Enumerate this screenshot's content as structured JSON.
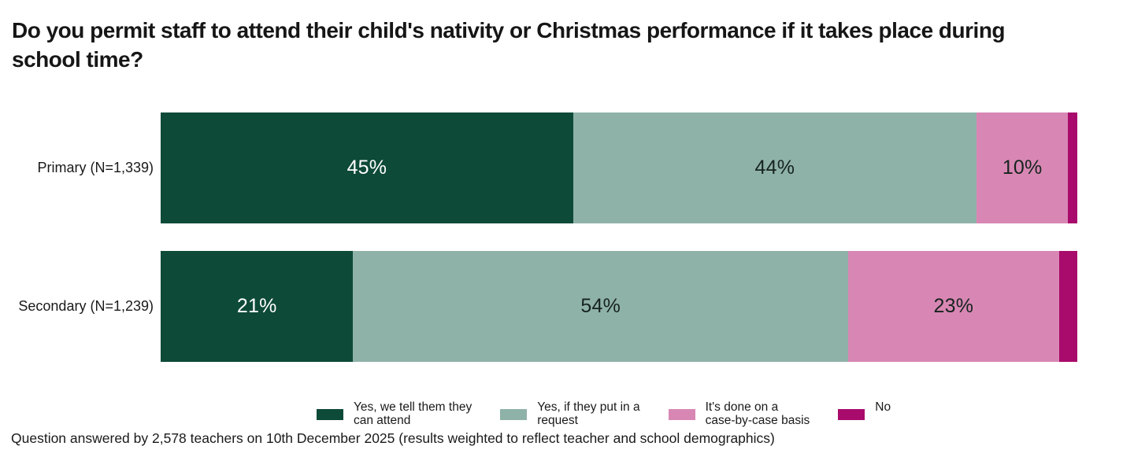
{
  "title": "Do you permit staff to attend their child's nativity or Christmas performance if it takes place during\nschool time?",
  "footnote": "Question answered by 2,578 teachers on 10th December 2025 (results weighted to reflect teacher and school demographics)",
  "chart_data": {
    "type": "bar",
    "variant": "horizontal-stacked",
    "x_range": [
      0,
      100
    ],
    "unit": "%",
    "grid": false,
    "legend_position": "bottom",
    "categories": [
      "Primary (N=1,339)",
      "Secondary (N=1,239)"
    ],
    "series": [
      {
        "name": "Yes, we tell them they can attend",
        "color": "#0D4A38",
        "label_color": "#FFFFFF",
        "values": [
          45,
          21
        ],
        "data_labels": [
          "45%",
          "21%"
        ]
      },
      {
        "name": "Yes, if they put in a request",
        "color": "#8FB2A8",
        "label_color": "#16231E",
        "values": [
          44,
          54
        ],
        "data_labels": [
          "44%",
          "54%"
        ]
      },
      {
        "name": "It's done on a case-by-case basis",
        "color": "#D887B4",
        "label_color": "#16231E",
        "values": [
          10,
          23
        ],
        "data_labels": [
          "10%",
          "23%"
        ]
      },
      {
        "name": "No",
        "color": "#A80B6C",
        "label_color": "#16231E",
        "values": [
          1,
          2
        ],
        "data_labels": [
          "",
          ""
        ]
      }
    ],
    "legend_items": [
      {
        "label": "Yes, we tell them they\ncan attend",
        "color": "#0D4A38"
      },
      {
        "label": "Yes, if they put in a\nrequest",
        "color": "#8FB2A8"
      },
      {
        "label": "It's done on a\ncase-by-case basis",
        "color": "#D887B4"
      },
      {
        "label": "No",
        "color": "#A80B6C"
      }
    ]
  }
}
